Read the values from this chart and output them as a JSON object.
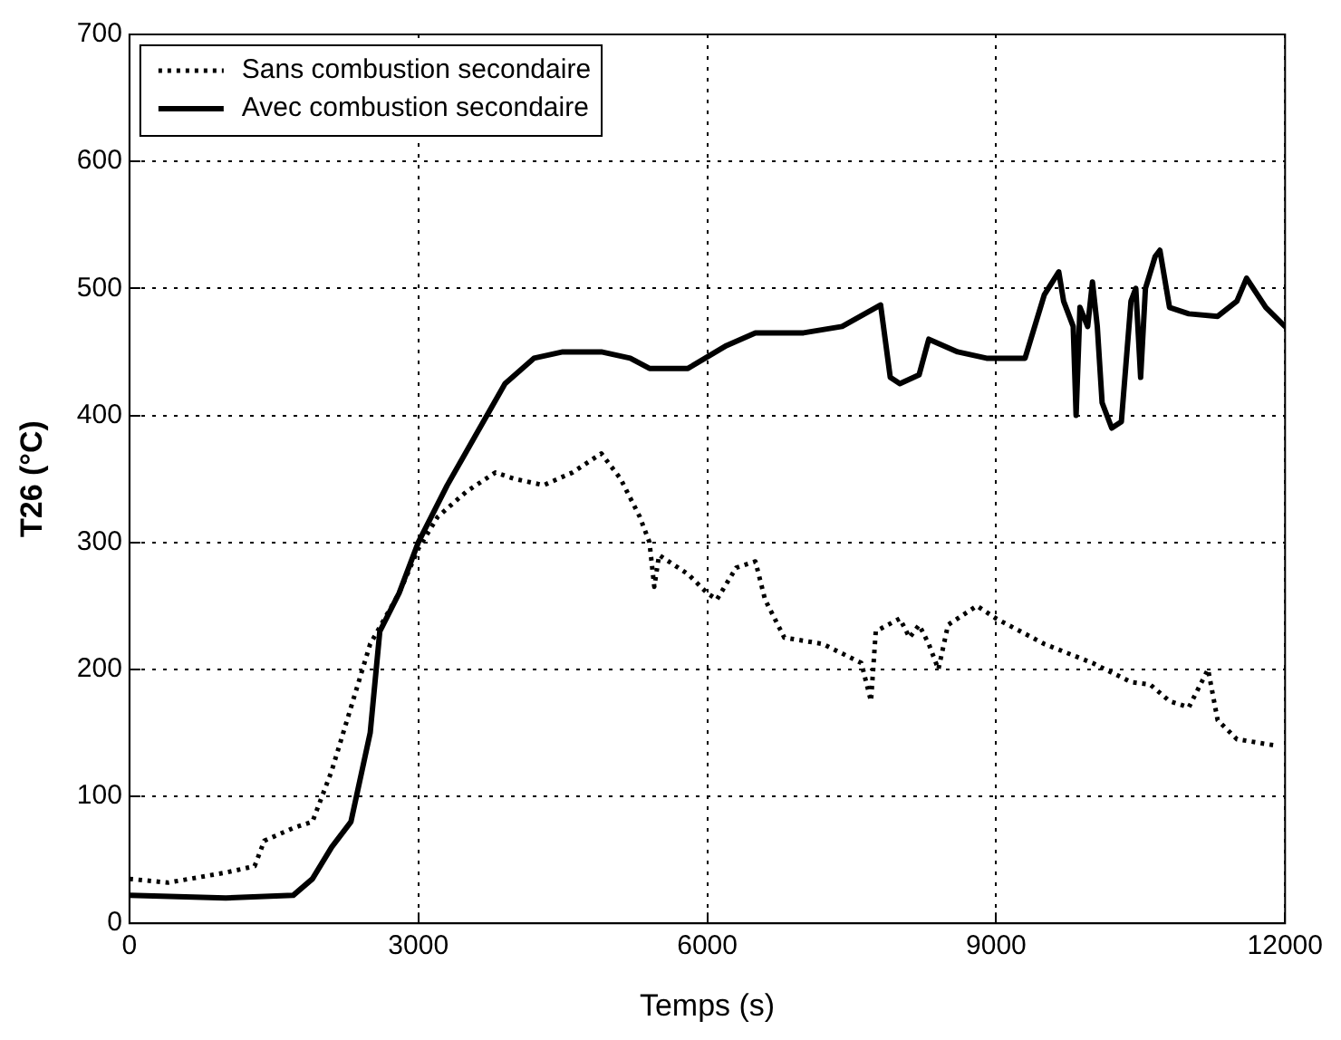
{
  "chart_data": {
    "type": "line",
    "xlabel": "Temps (s)",
    "ylabel": "T26 (°C)",
    "xlim": [
      0,
      12000
    ],
    "xticks": [
      0,
      3000,
      6000,
      9000,
      12000
    ],
    "ylim": [
      0,
      700
    ],
    "yticks": [
      0,
      100,
      200,
      300,
      400,
      500,
      600,
      700
    ],
    "grid": true,
    "legend": "top left",
    "marker": "none",
    "series": [
      {
        "name": "Sans combustion secondaire",
        "color": "#000000",
        "line_style": "dotted",
        "x": [
          0,
          400,
          1000,
          1300,
          1400,
          1700,
          1900,
          2100,
          2300,
          2500,
          2800,
          3000,
          3200,
          3500,
          3800,
          4000,
          4300,
          4600,
          4900,
          5100,
          5300,
          5400,
          5450,
          5500,
          5800,
          6000,
          6100,
          6300,
          6500,
          6600,
          6800,
          7200,
          7600,
          7700,
          7750,
          8000,
          8100,
          8200,
          8300,
          8400,
          8500,
          8800,
          9000,
          9500,
          10000,
          10400,
          10600,
          10800,
          11000,
          11200,
          11300,
          11500,
          11900
        ],
        "values": [
          35,
          32,
          40,
          45,
          65,
          75,
          80,
          120,
          170,
          220,
          260,
          295,
          320,
          340,
          355,
          350,
          345,
          355,
          370,
          350,
          320,
          300,
          265,
          290,
          275,
          260,
          255,
          280,
          285,
          255,
          225,
          220,
          205,
          175,
          230,
          240,
          225,
          235,
          220,
          200,
          235,
          250,
          240,
          220,
          205,
          190,
          188,
          175,
          170,
          200,
          160,
          145,
          140
        ]
      },
      {
        "name": "Avec combustion secondaire",
        "color": "#000000",
        "line_style": "solid",
        "x": [
          0,
          1000,
          1700,
          1900,
          2100,
          2300,
          2500,
          2600,
          2800,
          3000,
          3300,
          3600,
          3900,
          4200,
          4500,
          4900,
          5200,
          5400,
          5800,
          6200,
          6500,
          7000,
          7400,
          7800,
          7900,
          8000,
          8200,
          8300,
          8600,
          8900,
          9300,
          9500,
          9650,
          9700,
          9800,
          9830,
          9870,
          9950,
          10000,
          10050,
          10100,
          10200,
          10300,
          10400,
          10450,
          10500,
          10550,
          10650,
          10700,
          10800,
          11000,
          11300,
          11500,
          11600,
          11800,
          12000
        ],
        "values": [
          22,
          20,
          22,
          35,
          60,
          80,
          150,
          230,
          260,
          300,
          345,
          385,
          425,
          445,
          450,
          450,
          445,
          437,
          437,
          455,
          465,
          465,
          470,
          487,
          430,
          425,
          432,
          460,
          450,
          445,
          445,
          495,
          513,
          490,
          470,
          400,
          485,
          470,
          505,
          470,
          410,
          390,
          395,
          490,
          500,
          430,
          500,
          525,
          530,
          485,
          480,
          478,
          490,
          508,
          485,
          470
        ]
      }
    ]
  }
}
